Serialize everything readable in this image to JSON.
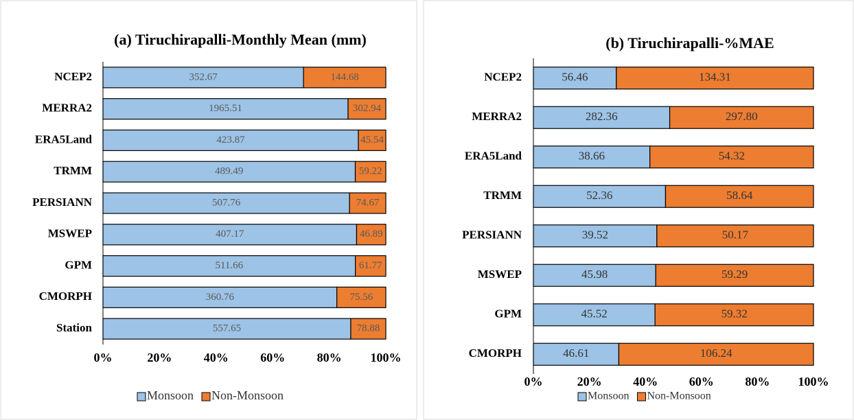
{
  "chart_data": [
    {
      "type": "bar",
      "orientation": "horizontal",
      "stack": "percent",
      "title": "(a) Tiruchirapalli-Monthly Mean (mm)",
      "categories": [
        "NCEP2",
        "MERRA2",
        "ERA5Land",
        "TRMM",
        "PERSIANN",
        "MSWEP",
        "GPM",
        "CMORPH",
        "Station"
      ],
      "series": [
        {
          "name": "Monsoon",
          "color": "#9dc3e6",
          "values": [
            352.67,
            1965.51,
            423.87,
            489.49,
            507.76,
            407.17,
            511.66,
            360.76,
            557.65
          ],
          "value_labels": [
            "352.67",
            "1965.51",
            "423.87",
            "489.49",
            "507.76",
            "407.17",
            "511.66",
            "360.76",
            "557.65"
          ]
        },
        {
          "name": "Non-Monsoon",
          "color": "#ed7d31",
          "values": [
            144.68,
            302.94,
            45.54,
            59.22,
            74.67,
            46.89,
            61.77,
            75.56,
            78.88
          ],
          "value_labels": [
            "144.68",
            "302.94",
            "45.54",
            "59.22",
            "74.67",
            "46.89",
            "61.77",
            "75.56",
            "78.88"
          ]
        }
      ],
      "xlim": [
        0,
        100
      ],
      "xticks": [
        {
          "value": 0,
          "label": "0%"
        },
        {
          "value": 20,
          "label": "20%"
        },
        {
          "value": 40,
          "label": "40%"
        },
        {
          "value": 60,
          "label": "60%"
        },
        {
          "value": 80,
          "label": "80%"
        },
        {
          "value": 100,
          "label": "100%"
        }
      ],
      "grid": false,
      "legend": "bottom"
    },
    {
      "type": "bar",
      "orientation": "horizontal",
      "stack": "percent",
      "title": "(b) Tiruchirapalli-%MAE",
      "categories": [
        "NCEP2",
        "MERRA2",
        "ERA5Land",
        "TRMM",
        "PERSIANN",
        "MSWEP",
        "GPM",
        "CMORPH"
      ],
      "series": [
        {
          "name": "Monsoon",
          "color": "#9dc3e6",
          "values": [
            56.46,
            282.36,
            38.66,
            52.36,
            39.52,
            45.98,
            45.52,
            46.61
          ],
          "value_labels": [
            "56.46",
            "282.36",
            "38.66",
            "52.36",
            "39.52",
            "45.98",
            "45.52",
            "46.61"
          ]
        },
        {
          "name": "Non-Monsoon",
          "color": "#ed7d31",
          "values": [
            134.31,
            297.8,
            54.32,
            58.64,
            50.17,
            59.29,
            59.32,
            106.24
          ],
          "value_labels": [
            "134.31",
            "297.80",
            "54.32",
            "58.64",
            "50.17",
            "59.29",
            "59.32",
            "106.24"
          ]
        }
      ],
      "xlim": [
        0,
        100
      ],
      "xticks": [
        {
          "value": 0,
          "label": "0%"
        },
        {
          "value": 20,
          "label": "20%"
        },
        {
          "value": 40,
          "label": "40%"
        },
        {
          "value": 60,
          "label": "60%"
        },
        {
          "value": 80,
          "label": "80%"
        },
        {
          "value": 100,
          "label": "100%"
        }
      ],
      "grid": false,
      "legend": "bottom"
    }
  ]
}
